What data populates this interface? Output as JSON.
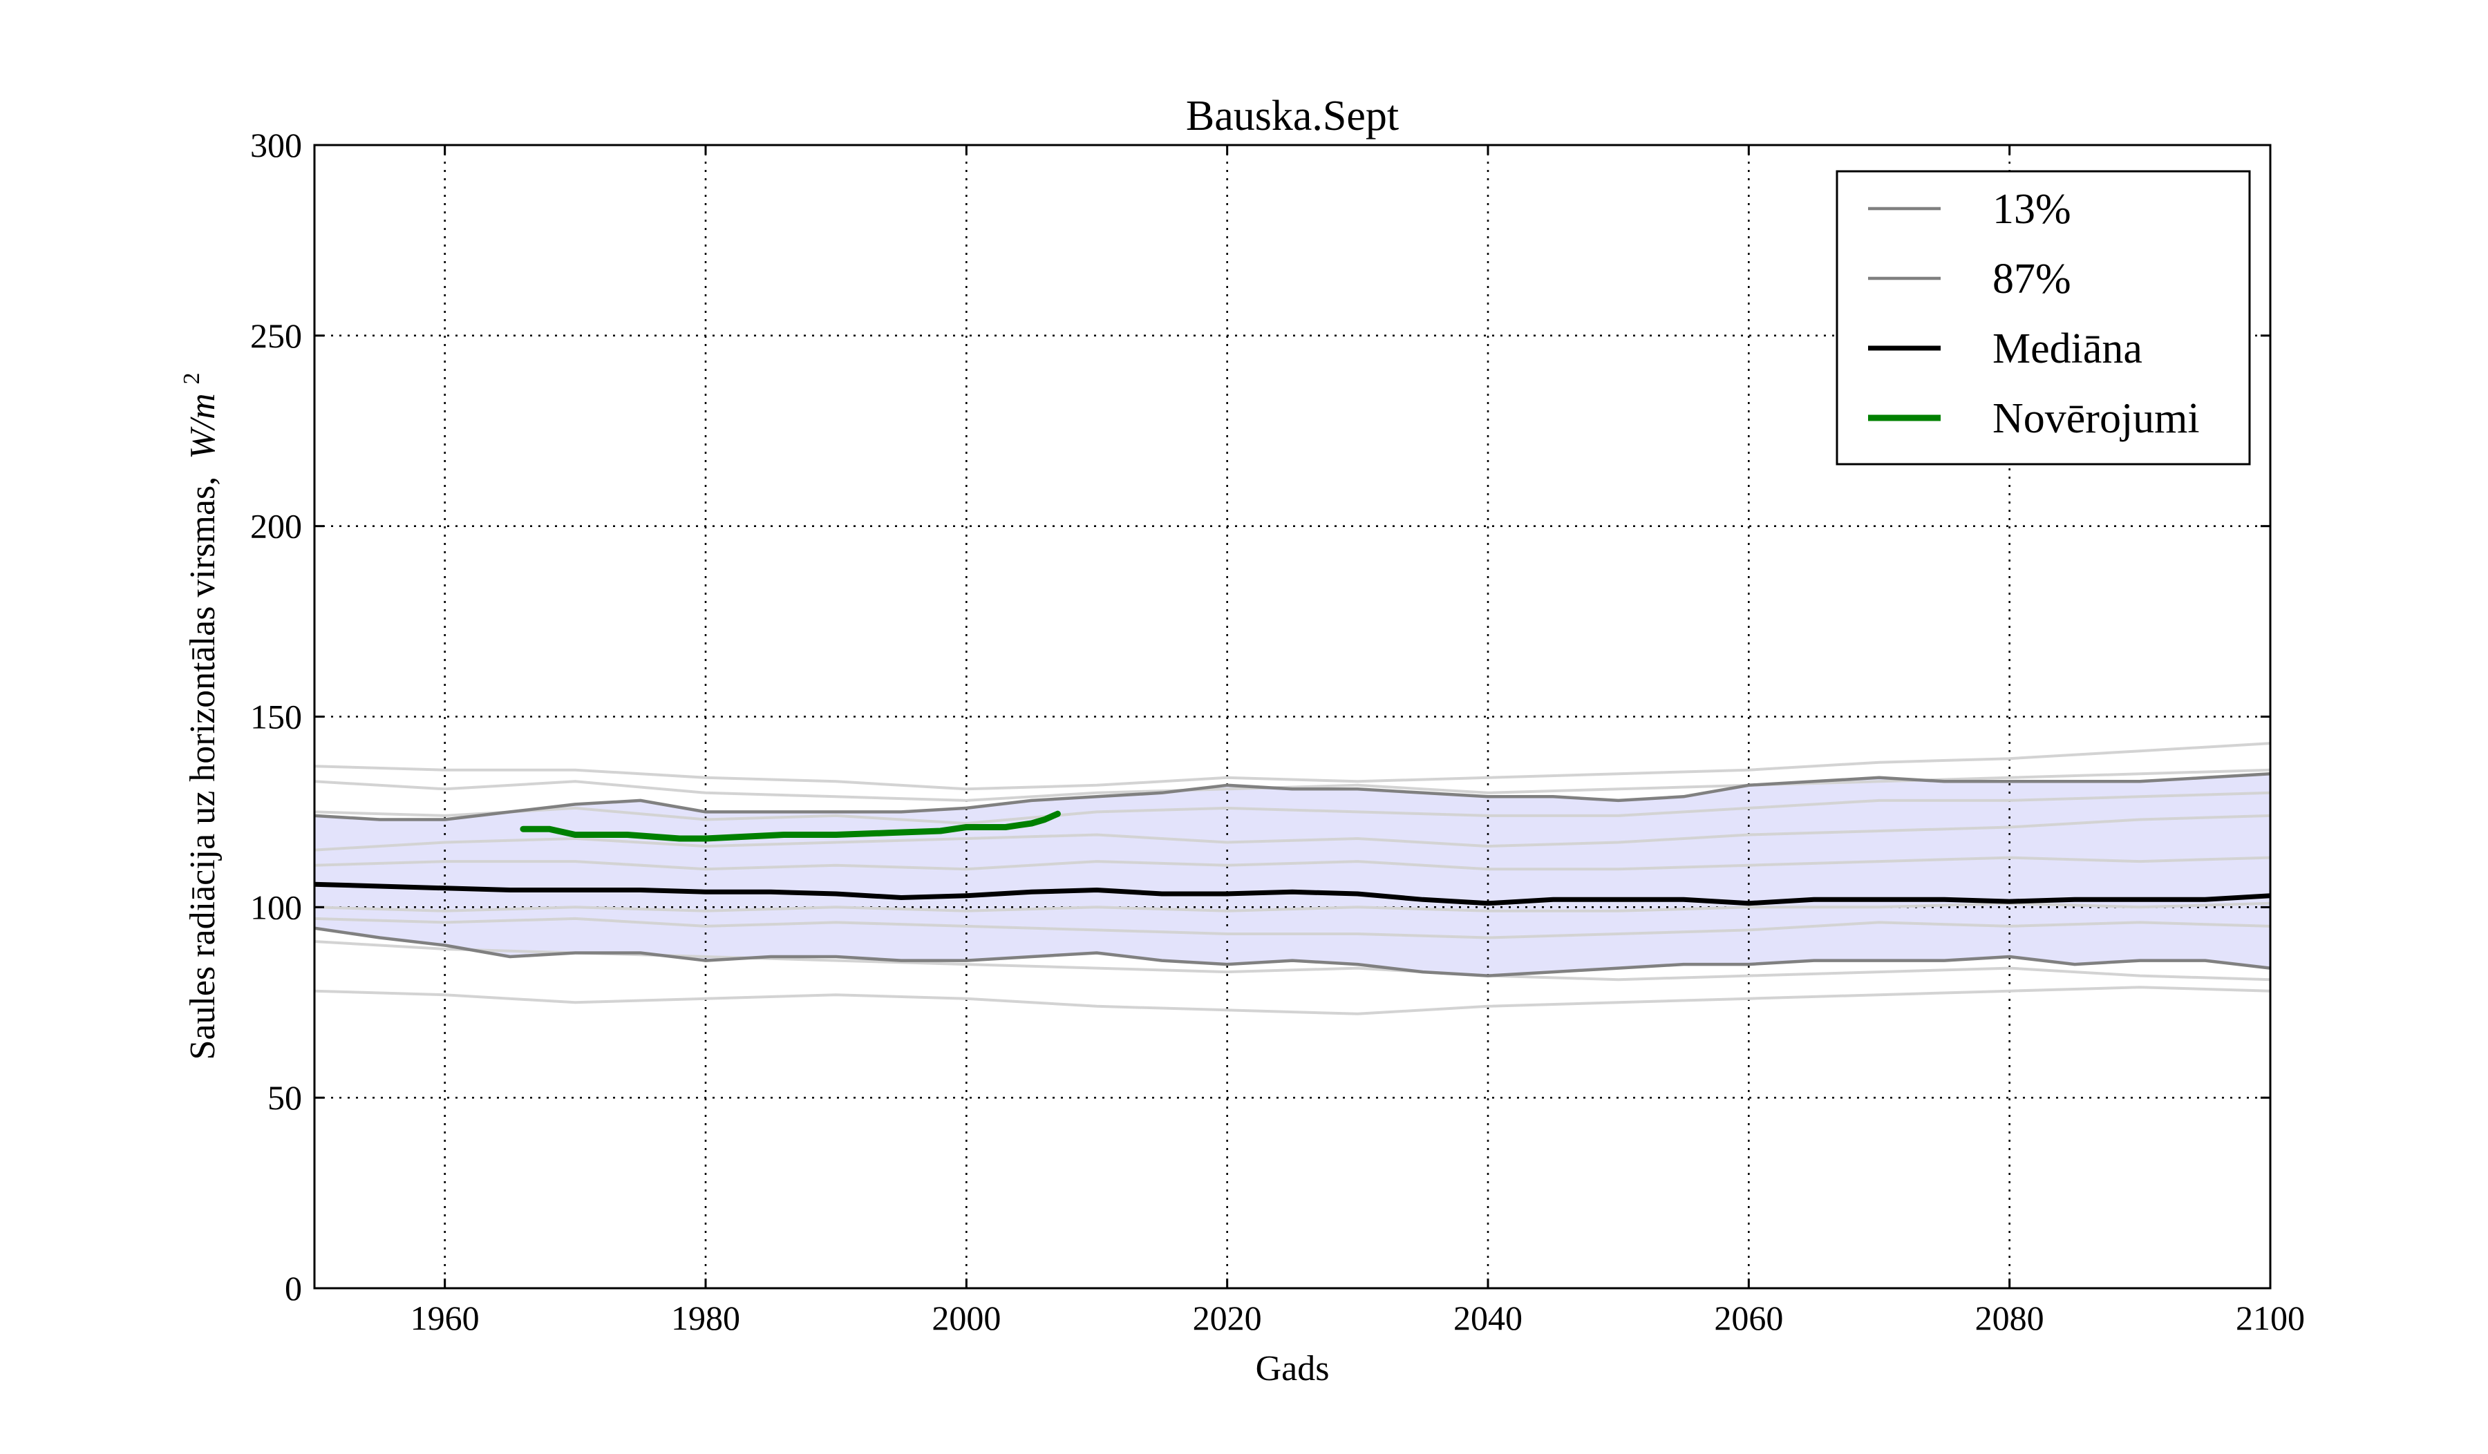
{
  "chart_data": {
    "type": "line",
    "title": "Bauska.Sept",
    "xlabel": "Gads",
    "ylabel": "Saules radiācija uz horizontālas virsmas,",
    "ylabel_unit": "W/m",
    "ylabel_unit_exp": "2",
    "xlim": [
      1950,
      2100
    ],
    "ylim": [
      0,
      300
    ],
    "grid": true,
    "legend_position": "top-right",
    "x_ticks": [
      1960,
      1980,
      2000,
      2020,
      2040,
      2060,
      2080,
      2100
    ],
    "y_ticks": [
      0,
      50,
      100,
      150,
      200,
      250,
      300
    ],
    "band_color": "#e3e3fb",
    "series": [
      {
        "name": "13%",
        "color": "#808080",
        "x": [
          1950,
          1955,
          1960,
          1965,
          1970,
          1975,
          1980,
          1985,
          1990,
          1995,
          2000,
          2005,
          2010,
          2015,
          2020,
          2025,
          2030,
          2035,
          2040,
          2045,
          2050,
          2055,
          2060,
          2065,
          2070,
          2075,
          2080,
          2085,
          2090,
          2095,
          2100
        ],
        "values": [
          94.5,
          92,
          90,
          87,
          88,
          88,
          86,
          87,
          87,
          86,
          86,
          87,
          88,
          86,
          85,
          86,
          85,
          83,
          82,
          83,
          84,
          85,
          85,
          86,
          86,
          86,
          87,
          85,
          86,
          86,
          84
        ]
      },
      {
        "name": "87%",
        "color": "#808080",
        "x": [
          1950,
          1955,
          1960,
          1965,
          1970,
          1975,
          1980,
          1985,
          1990,
          1995,
          2000,
          2005,
          2010,
          2015,
          2020,
          2025,
          2030,
          2035,
          2040,
          2045,
          2050,
          2055,
          2060,
          2065,
          2070,
          2075,
          2080,
          2085,
          2090,
          2095,
          2100
        ],
        "values": [
          124,
          123,
          123,
          125,
          127,
          128,
          125,
          125,
          125,
          125,
          126,
          128,
          129,
          130,
          132,
          131,
          131,
          130,
          129,
          129,
          128,
          129,
          132,
          133,
          134,
          133,
          133,
          133,
          133,
          134,
          135
        ]
      },
      {
        "name": "Mediāna",
        "color": "#000000",
        "x": [
          1950,
          1955,
          1960,
          1965,
          1970,
          1975,
          1980,
          1985,
          1990,
          1995,
          2000,
          2005,
          2010,
          2015,
          2020,
          2025,
          2030,
          2035,
          2040,
          2045,
          2050,
          2055,
          2060,
          2065,
          2070,
          2075,
          2080,
          2085,
          2090,
          2095,
          2100
        ],
        "values": [
          106,
          105.5,
          105,
          104.5,
          104.5,
          104.5,
          104,
          104,
          103.5,
          102.5,
          103,
          104,
          104.5,
          103.5,
          103.5,
          104,
          103.5,
          102,
          101,
          102,
          102,
          102,
          101,
          102,
          102,
          102,
          101.5,
          102,
          102,
          102,
          103
        ]
      },
      {
        "name": "Novērojumi",
        "color": "#008000",
        "x": [
          1966,
          1968,
          1970,
          1974,
          1976,
          1978,
          1980,
          1983,
          1986,
          1990,
          1994,
          1998,
          2000,
          2003,
          2004,
          2005,
          2006,
          2007
        ],
        "values": [
          120.5,
          120.5,
          119,
          119,
          118.5,
          118,
          118,
          118.5,
          119,
          119,
          119.5,
          120,
          121,
          121,
          121.5,
          122,
          123,
          124.5
        ]
      }
    ],
    "ensemble_members": [
      {
        "color": "#d3d3d3",
        "x": [
          1950,
          1960,
          1970,
          1980,
          1990,
          2000,
          2010,
          2020,
          2030,
          2040,
          2050,
          2060,
          2070,
          2080,
          2090,
          2100
        ],
        "values": [
          137,
          136,
          136,
          134,
          133,
          131,
          132,
          134,
          133,
          134,
          135,
          136,
          138,
          139,
          141,
          143
        ]
      },
      {
        "color": "#d3d3d3",
        "x": [
          1950,
          1960,
          1970,
          1980,
          1990,
          2000,
          2010,
          2020,
          2030,
          2040,
          2050,
          2060,
          2070,
          2080,
          2090,
          2100
        ],
        "values": [
          133,
          131,
          133,
          130,
          129,
          128,
          130,
          131,
          132,
          130,
          131,
          132,
          133,
          134,
          135,
          136
        ]
      },
      {
        "color": "#d3d3d3",
        "x": [
          1950,
          1960,
          1970,
          1980,
          1990,
          2000,
          2010,
          2020,
          2030,
          2040,
          2050,
          2060,
          2070,
          2080,
          2090,
          2100
        ],
        "values": [
          125,
          124,
          126,
          123,
          124,
          122,
          125,
          126,
          125,
          124,
          124,
          126,
          128,
          128,
          129,
          130
        ]
      },
      {
        "color": "#d3d3d3",
        "x": [
          1950,
          1960,
          1970,
          1980,
          1990,
          2000,
          2010,
          2020,
          2030,
          2040,
          2050,
          2060,
          2070,
          2080,
          2090,
          2100
        ],
        "values": [
          115,
          117,
          118,
          116,
          117,
          118,
          119,
          117,
          118,
          116,
          117,
          119,
          120,
          121,
          123,
          124
        ]
      },
      {
        "color": "#d3d3d3",
        "x": [
          1950,
          1960,
          1970,
          1980,
          1990,
          2000,
          2010,
          2020,
          2030,
          2040,
          2050,
          2060,
          2070,
          2080,
          2090,
          2100
        ],
        "values": [
          111,
          112,
          112,
          110,
          111,
          110,
          112,
          111,
          112,
          110,
          110,
          111,
          112,
          113,
          112,
          113
        ]
      },
      {
        "color": "#d3d3d3",
        "x": [
          1950,
          1960,
          1970,
          1980,
          1990,
          2000,
          2010,
          2020,
          2030,
          2040,
          2050,
          2060,
          2070,
          2080,
          2090,
          2100
        ],
        "values": [
          100,
          99,
          100,
          99,
          100,
          99,
          100,
          99,
          100,
          99,
          99,
          100,
          100,
          101,
          100,
          101
        ]
      },
      {
        "color": "#d3d3d3",
        "x": [
          1950,
          1960,
          1970,
          1980,
          1990,
          2000,
          2010,
          2020,
          2030,
          2040,
          2050,
          2060,
          2070,
          2080,
          2090,
          2100
        ],
        "values": [
          97,
          96,
          97,
          95,
          96,
          95,
          94,
          93,
          93,
          92,
          93,
          94,
          96,
          95,
          96,
          95
        ]
      },
      {
        "color": "#d3d3d3",
        "x": [
          1950,
          1960,
          1970,
          1980,
          1990,
          2000,
          2010,
          2020,
          2030,
          2040,
          2050,
          2060,
          2070,
          2080,
          2090,
          2100
        ],
        "values": [
          91,
          89,
          88,
          87,
          86,
          85,
          84,
          83,
          84,
          82,
          81,
          82,
          83,
          84,
          82,
          81
        ]
      },
      {
        "color": "#d3d3d3",
        "x": [
          1950,
          1960,
          1970,
          1980,
          1990,
          2000,
          2010,
          2020,
          2030,
          2040,
          2050,
          2060,
          2070,
          2080,
          2090,
          2100
        ],
        "values": [
          78,
          77,
          75,
          76,
          77,
          76,
          74,
          73,
          72,
          74,
          75,
          76,
          77,
          78,
          79,
          78
        ]
      }
    ]
  }
}
